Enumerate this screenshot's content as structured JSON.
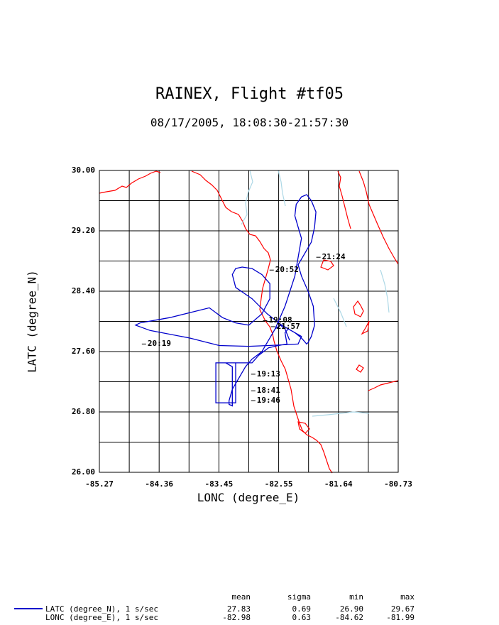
{
  "chart_data": {
    "type": "line",
    "title": "RAINEX, Flight #tf05",
    "subtitle": "08/17/2005, 18:08:30-21:57:30",
    "xlabel": "LONC (degree_E)",
    "ylabel": "LATC (degree_N)",
    "xlim": [
      -85.27,
      -80.73
    ],
    "ylim": [
      26.0,
      30.0
    ],
    "xticks": [
      "-85.27",
      "-84.36",
      "-83.45",
      "-82.55",
      "-81.64",
      "-80.73"
    ],
    "yticks": [
      "30.00",
      "29.20",
      "28.40",
      "27.60",
      "26.80",
      "26.00"
    ],
    "grid": true,
    "series": [
      {
        "color": "#0000cc",
        "x": [
          -82.38,
          -82.45,
          -82.52,
          -82.6,
          -82.7,
          -82.8,
          -82.95,
          -83.05,
          -83.15,
          -83.25,
          -83.3,
          -83.3,
          -83.25,
          -83.25,
          -83.35,
          -83.5,
          -83.5,
          -83.2,
          -83.2,
          -83.5,
          -83.5,
          -83.2,
          -83.2,
          -82.95,
          -82.85,
          -82.7,
          -82.55,
          -82.42,
          -82.45,
          -82.4,
          -82.2,
          -82.25,
          -82.7,
          -83.0,
          -83.45,
          -83.9,
          -84.5,
          -84.72,
          -84.65,
          -84.2,
          -83.6,
          -83.4,
          -83.2,
          -83.0,
          -82.8,
          -82.68,
          -82.68,
          -82.8,
          -82.95,
          -83.1,
          -83.2,
          -83.25,
          -83.2,
          -82.95,
          -82.72,
          -82.5,
          -82.3,
          -82.2,
          -82.12,
          -82.1,
          -82.05,
          -82.0,
          -82.02,
          -82.1,
          -82.2,
          -82.25,
          -82.15,
          -82.05,
          -82.0,
          -81.98,
          -82.05,
          -82.12,
          -82.2,
          -82.28,
          -82.3,
          -82.25,
          -82.2,
          -82.3,
          -82.45,
          -82.6
        ],
        "y": [
          27.75,
          27.9,
          27.95,
          27.9,
          27.75,
          27.6,
          27.5,
          27.4,
          27.25,
          27.1,
          26.95,
          26.9,
          26.88,
          27.4,
          27.45,
          27.45,
          26.92,
          26.92,
          27.45,
          27.45,
          26.92,
          26.92,
          27.45,
          27.45,
          27.55,
          27.65,
          27.68,
          27.7,
          27.85,
          27.9,
          27.8,
          27.7,
          27.68,
          27.67,
          27.68,
          27.78,
          27.88,
          27.95,
          27.98,
          28.05,
          28.18,
          28.05,
          27.98,
          27.95,
          28.1,
          28.3,
          28.5,
          28.62,
          28.7,
          28.72,
          28.7,
          28.62,
          28.45,
          28.3,
          28.1,
          27.95,
          27.85,
          27.78,
          27.7,
          27.72,
          27.8,
          27.95,
          28.2,
          28.4,
          28.6,
          28.75,
          28.9,
          29.05,
          29.25,
          29.45,
          29.6,
          29.68,
          29.65,
          29.55,
          29.4,
          29.25,
          29.1,
          28.6,
          28.2,
          27.9
        ]
      }
    ],
    "time_labels": [
      {
        "text": "21:24",
        "x": -81.91,
        "y": 28.85
      },
      {
        "text": "20:52",
        "x": -82.62,
        "y": 28.68
      },
      {
        "text": "19:08",
        "x": -82.72,
        "y": 28.01
      },
      {
        "text": "21:57",
        "x": -82.6,
        "y": 27.93
      },
      {
        "text": "20:19",
        "x": -84.56,
        "y": 27.7
      },
      {
        "text": "19:13",
        "x": -82.9,
        "y": 27.3
      },
      {
        "text": "18:41",
        "x": -82.9,
        "y": 27.08
      },
      {
        "text": "19:46",
        "x": -82.9,
        "y": 26.95
      }
    ]
  },
  "coastline_color": "#ff0000",
  "river_color": "#add8e6",
  "stats": {
    "headers": [
      "mean",
      "sigma",
      "min",
      "max"
    ],
    "rows": [
      {
        "name": "LATC (degree_N), 1 s/sec",
        "mean": "27.83",
        "sigma": "0.69",
        "min": "26.90",
        "max": "29.67"
      },
      {
        "name": "LONC (degree_E), 1 s/sec",
        "mean": "-82.98",
        "sigma": "0.63",
        "min": "-84.62",
        "max": "-81.99"
      }
    ]
  }
}
